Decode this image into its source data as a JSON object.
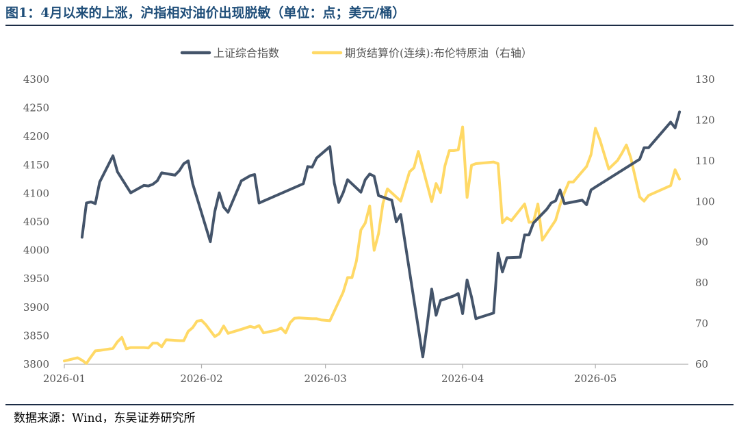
{
  "title": "图1：4月以来的上涨，沪指相对油价出现脱敏（单位：点；美元/桶）",
  "source": "数据来源：Wind，东吴证券研究所",
  "chart_data": {
    "type": "line",
    "x_tick_labels": [
      "2026-01",
      "2026-02",
      "2026-03",
      "2026-04",
      "2026-05"
    ],
    "x_tick_dates": [
      "2026-01-01",
      "2026-02-01",
      "2026-03-01",
      "2026-04-01",
      "2026-05-01"
    ],
    "x_range": [
      "2026-01-01",
      "2026-05-22"
    ],
    "y_left": {
      "min": 3800,
      "max": 4300,
      "ticks": [
        3800,
        3850,
        3900,
        3950,
        4000,
        4050,
        4100,
        4150,
        4200,
        4250,
        4300
      ]
    },
    "y_right": {
      "min": 60,
      "max": 130,
      "ticks": [
        60,
        70,
        80,
        90,
        100,
        110,
        120,
        130
      ]
    },
    "grid": false,
    "legend_position": "top-center",
    "series": [
      {
        "name": "上证综合指数",
        "axis": "left",
        "color": "#44546a",
        "points": [
          [
            "2026-01-05",
            4023
          ],
          [
            "2026-01-06",
            4083
          ],
          [
            "2026-01-07",
            4085
          ],
          [
            "2026-01-08",
            4082
          ],
          [
            "2026-01-09",
            4120
          ],
          [
            "2026-01-12",
            4166
          ],
          [
            "2026-01-13",
            4138
          ],
          [
            "2026-01-16",
            4101
          ],
          [
            "2026-01-19",
            4114
          ],
          [
            "2026-01-20",
            4113
          ],
          [
            "2026-01-21",
            4116
          ],
          [
            "2026-01-22",
            4122
          ],
          [
            "2026-01-23",
            4136
          ],
          [
            "2026-01-26",
            4132
          ],
          [
            "2026-01-27",
            4140
          ],
          [
            "2026-01-28",
            4152
          ],
          [
            "2026-01-29",
            4157
          ],
          [
            "2026-01-30",
            4117
          ],
          [
            "2026-02-03",
            4015
          ],
          [
            "2026-02-04",
            4068
          ],
          [
            "2026-02-05",
            4101
          ],
          [
            "2026-02-06",
            4076
          ],
          [
            "2026-02-07",
            4067
          ],
          [
            "2026-02-10",
            4122
          ],
          [
            "2026-02-12",
            4131
          ],
          [
            "2026-02-13",
            4133
          ],
          [
            "2026-02-14",
            4083
          ],
          [
            "2026-02-24",
            4117
          ],
          [
            "2026-02-25",
            4147
          ],
          [
            "2026-02-26",
            4146
          ],
          [
            "2026-02-27",
            4162
          ],
          [
            "2026-03-02",
            4182
          ],
          [
            "2026-03-03",
            4118
          ],
          [
            "2026-03-04",
            4084
          ],
          [
            "2026-03-05",
            4101
          ],
          [
            "2026-03-06",
            4124
          ],
          [
            "2026-03-09",
            4102
          ],
          [
            "2026-03-10",
            4124
          ],
          [
            "2026-03-11",
            4134
          ],
          [
            "2026-03-12",
            4130
          ],
          [
            "2026-03-13",
            4096
          ],
          [
            "2026-03-16",
            4088
          ],
          [
            "2026-03-17",
            4050
          ],
          [
            "2026-03-18",
            4063
          ],
          [
            "2026-03-23",
            3813
          ],
          [
            "2026-03-24",
            3870
          ],
          [
            "2026-03-25",
            3932
          ],
          [
            "2026-03-26",
            3886
          ],
          [
            "2026-03-27",
            3912
          ],
          [
            "2026-03-30",
            3920
          ],
          [
            "2026-03-31",
            3924
          ],
          [
            "2026-04-01",
            3889
          ],
          [
            "2026-04-02",
            3948
          ],
          [
            "2026-04-03",
            3918
          ],
          [
            "2026-04-04",
            3880
          ],
          [
            "2026-04-08",
            3890
          ],
          [
            "2026-04-09",
            3995
          ],
          [
            "2026-04-10",
            3962
          ],
          [
            "2026-04-11",
            3987
          ],
          [
            "2026-04-14",
            3988
          ],
          [
            "2026-04-15",
            4027
          ],
          [
            "2026-04-16",
            4027
          ],
          [
            "2026-04-17",
            4048
          ],
          [
            "2026-04-20",
            4072
          ],
          [
            "2026-04-21",
            4083
          ],
          [
            "2026-04-22",
            4087
          ],
          [
            "2026-04-23",
            4106
          ],
          [
            "2026-04-24",
            4082
          ],
          [
            "2026-04-28",
            4088
          ],
          [
            "2026-04-29",
            4080
          ],
          [
            "2026-04-30",
            4106
          ],
          [
            "2026-05-01",
            4111
          ],
          [
            "2026-05-11",
            4160
          ],
          [
            "2026-05-12",
            4180
          ],
          [
            "2026-05-13",
            4180
          ],
          [
            "2026-05-18",
            4225
          ],
          [
            "2026-05-19",
            4215
          ],
          [
            "2026-05-20",
            4243
          ]
        ]
      },
      {
        "name": "期货结算价(连续):布伦特原油（右轴）",
        "axis": "right",
        "color": "#ffd966",
        "points": [
          [
            "2026-01-01",
            60.8
          ],
          [
            "2026-01-04",
            61.6
          ],
          [
            "2026-01-05",
            61.0
          ],
          [
            "2026-01-06",
            60.2
          ],
          [
            "2026-01-07",
            61.8
          ],
          [
            "2026-01-08",
            63.3
          ],
          [
            "2026-01-09",
            63.4
          ],
          [
            "2026-01-12",
            63.9
          ],
          [
            "2026-01-13",
            65.5
          ],
          [
            "2026-01-14",
            66.6
          ],
          [
            "2026-01-15",
            63.8
          ],
          [
            "2026-01-16",
            64.1
          ],
          [
            "2026-01-19",
            64.1
          ],
          [
            "2026-01-20",
            64.0
          ],
          [
            "2026-01-21",
            65.2
          ],
          [
            "2026-01-22",
            65.2
          ],
          [
            "2026-01-23",
            64.3
          ],
          [
            "2026-01-24",
            66.0
          ],
          [
            "2026-01-27",
            65.8
          ],
          [
            "2026-01-28",
            65.8
          ],
          [
            "2026-01-29",
            68.1
          ],
          [
            "2026-01-30",
            69.0
          ],
          [
            "2026-01-31",
            70.6
          ],
          [
            "2026-02-01",
            70.8
          ],
          [
            "2026-02-02",
            69.7
          ],
          [
            "2026-02-04",
            66.8
          ],
          [
            "2026-02-05",
            67.5
          ],
          [
            "2026-02-06",
            69.4
          ],
          [
            "2026-02-07",
            67.6
          ],
          [
            "2026-02-10",
            68.6
          ],
          [
            "2026-02-12",
            69.3
          ],
          [
            "2026-02-13",
            69.0
          ],
          [
            "2026-02-14",
            69.5
          ],
          [
            "2026-02-15",
            67.7
          ],
          [
            "2026-02-18",
            68.4
          ],
          [
            "2026-02-19",
            68.9
          ],
          [
            "2026-02-20",
            67.7
          ],
          [
            "2026-02-21",
            70.2
          ],
          [
            "2026-02-22",
            71.3
          ],
          [
            "2026-02-23",
            71.4
          ],
          [
            "2026-02-26",
            71.2
          ],
          [
            "2026-02-27",
            71.2
          ],
          [
            "2026-02-28",
            70.9
          ],
          [
            "2026-03-02",
            70.7
          ],
          [
            "2026-03-05",
            77.7
          ],
          [
            "2026-03-06",
            81.3
          ],
          [
            "2026-03-07",
            81.3
          ],
          [
            "2026-03-08",
            85.4
          ],
          [
            "2026-03-09",
            93.0
          ],
          [
            "2026-03-10",
            94.7
          ],
          [
            "2026-03-11",
            98.9
          ],
          [
            "2026-03-12",
            88.0
          ],
          [
            "2026-03-13",
            92.1
          ],
          [
            "2026-03-14",
            99.6
          ],
          [
            "2026-03-15",
            103.1
          ],
          [
            "2026-03-18",
            100.1
          ],
          [
            "2026-03-20",
            107.3
          ],
          [
            "2026-03-21",
            108.3
          ],
          [
            "2026-03-22",
            112.3
          ],
          [
            "2026-03-25",
            100.0
          ],
          [
            "2026-03-26",
            104.4
          ],
          [
            "2026-03-27",
            102.2
          ],
          [
            "2026-03-28",
            108.8
          ],
          [
            "2026-03-29",
            112.5
          ],
          [
            "2026-03-30",
            112.5
          ],
          [
            "2026-03-31",
            112.7
          ],
          [
            "2026-04-01",
            118.3
          ],
          [
            "2026-04-02",
            101.0
          ],
          [
            "2026-04-03",
            108.9
          ],
          [
            "2026-04-04",
            109.3
          ],
          [
            "2026-04-08",
            109.7
          ],
          [
            "2026-04-09",
            109.3
          ],
          [
            "2026-04-10",
            94.8
          ],
          [
            "2026-04-11",
            96.0
          ],
          [
            "2026-04-12",
            95.3
          ],
          [
            "2026-04-15",
            99.4
          ],
          [
            "2026-04-16",
            94.9
          ],
          [
            "2026-04-17",
            95.0
          ],
          [
            "2026-04-18",
            99.4
          ],
          [
            "2026-04-19",
            90.5
          ],
          [
            "2026-04-22",
            95.4
          ],
          [
            "2026-04-23",
            99.1
          ],
          [
            "2026-04-24",
            102.2
          ],
          [
            "2026-04-25",
            104.8
          ],
          [
            "2026-04-26",
            104.8
          ],
          [
            "2026-04-29",
            108.6
          ],
          [
            "2026-04-30",
            111.5
          ],
          [
            "2026-05-01",
            118.0
          ],
          [
            "2026-05-02",
            115.2
          ],
          [
            "2026-05-04",
            108.0
          ],
          [
            "2026-05-06",
            110.1
          ],
          [
            "2026-05-07",
            111.9
          ],
          [
            "2026-05-08",
            113.9
          ],
          [
            "2026-05-09",
            110.7
          ],
          [
            "2026-05-11",
            101.1
          ],
          [
            "2026-05-12",
            100.1
          ],
          [
            "2026-05-13",
            101.5
          ],
          [
            "2026-05-18",
            103.9
          ],
          [
            "2026-05-19",
            107.8
          ],
          [
            "2026-05-20",
            105.5
          ]
        ]
      }
    ]
  }
}
